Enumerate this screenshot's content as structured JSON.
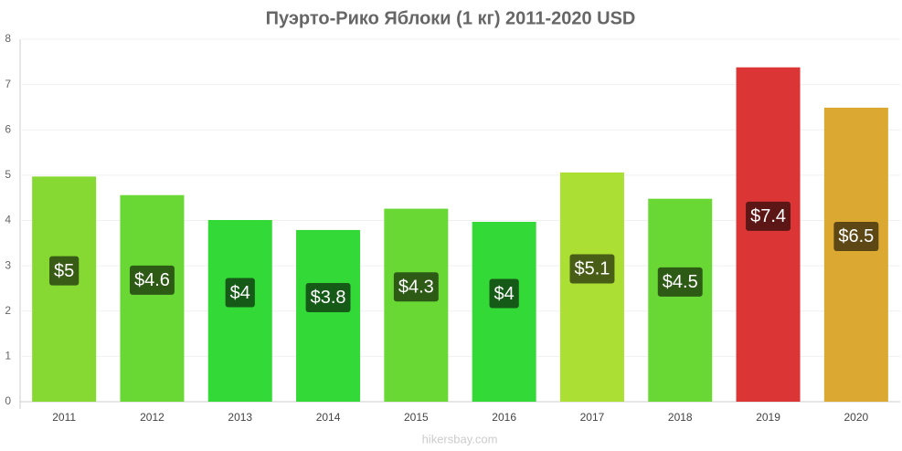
{
  "chart_data": {
    "type": "bar",
    "title": "Пуэрто-Рико Яблоки (1 кг) 2011-2020 USD",
    "categories": [
      "2011",
      "2012",
      "2013",
      "2014",
      "2015",
      "2016",
      "2017",
      "2018",
      "2019",
      "2020"
    ],
    "values": [
      4.97,
      4.56,
      4.01,
      3.79,
      4.26,
      3.97,
      5.06,
      4.48,
      7.38,
      6.49
    ],
    "value_labels": [
      "$5",
      "$4.6",
      "$4",
      "$3.8",
      "$4.3",
      "$4",
      "$5.1",
      "$4.5",
      "$7.4",
      "$6.5"
    ],
    "colors": [
      "#86d932",
      "#6ad834",
      "#33d936",
      "#33d936",
      "#6ad834",
      "#33d936",
      "#acdf34",
      "#6ad834",
      "#dc3535",
      "#dba832"
    ],
    "ylim": [
      0,
      8
    ],
    "yticks": [
      0,
      1,
      2,
      3,
      4,
      5,
      6,
      7,
      8
    ],
    "grid": true,
    "watermark": "hikersbay.com"
  }
}
